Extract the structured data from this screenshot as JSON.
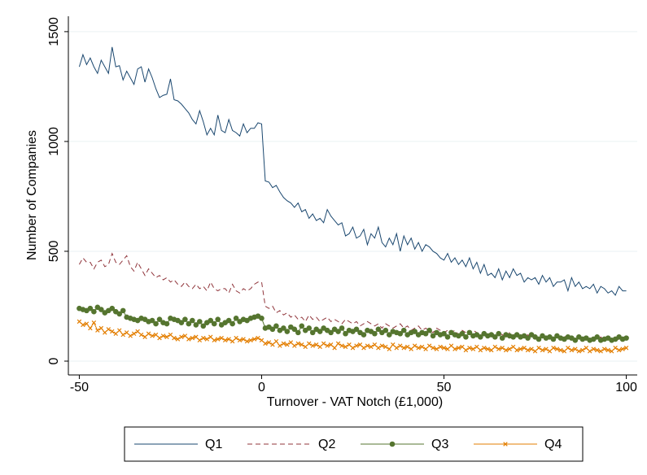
{
  "chart_data": {
    "type": "line",
    "xlabel": "Turnover - VAT Notch (£1,000)",
    "ylabel": "Number of Companies",
    "xlim": [
      -53,
      103
    ],
    "xticks": [
      -50,
      0,
      50,
      100
    ],
    "ylim": [
      -63,
      1570
    ],
    "yticks": [
      0,
      500,
      1000,
      1500
    ],
    "grid": true,
    "legend": "bottom",
    "x": [
      -50,
      -49,
      -48,
      -47,
      -46,
      -45,
      -44,
      -43,
      -42,
      -41,
      -40,
      -39,
      -38,
      -37,
      -36,
      -35,
      -34,
      -33,
      -32,
      -31,
      -30,
      -29,
      -28,
      -27,
      -26,
      -25,
      -24,
      -23,
      -22,
      -21,
      -20,
      -19,
      -18,
      -17,
      -16,
      -15,
      -14,
      -13,
      -12,
      -11,
      -10,
      -9,
      -8,
      -7,
      -6,
      -5,
      -4,
      -3,
      -2,
      -1,
      0,
      1,
      2,
      3,
      4,
      5,
      6,
      7,
      8,
      9,
      10,
      11,
      12,
      13,
      14,
      15,
      16,
      17,
      18,
      19,
      20,
      21,
      22,
      23,
      24,
      25,
      26,
      27,
      28,
      29,
      30,
      31,
      32,
      33,
      34,
      35,
      36,
      37,
      38,
      39,
      40,
      41,
      42,
      43,
      44,
      45,
      46,
      47,
      48,
      49,
      50,
      51,
      52,
      53,
      54,
      55,
      56,
      57,
      58,
      59,
      60,
      61,
      62,
      63,
      64,
      65,
      66,
      67,
      68,
      69,
      70,
      71,
      72,
      73,
      74,
      75,
      76,
      77,
      78,
      79,
      80,
      81,
      82,
      83,
      84,
      85,
      86,
      87,
      88,
      89,
      90,
      91,
      92,
      93,
      94,
      95,
      96,
      97,
      98,
      99,
      100
    ],
    "series": [
      {
        "name": "Q1",
        "color": "#1a476f",
        "style": "solid",
        "marker": "none",
        "values": [
          1340,
          1395,
          1350,
          1380,
          1340,
          1310,
          1370,
          1340,
          1310,
          1430,
          1340,
          1345,
          1280,
          1320,
          1290,
          1260,
          1330,
          1340,
          1270,
          1330,
          1290,
          1240,
          1200,
          1210,
          1215,
          1285,
          1190,
          1185,
          1170,
          1150,
          1130,
          1100,
          1080,
          1140,
          1090,
          1030,
          1060,
          1030,
          1120,
          1050,
          1040,
          1100,
          1050,
          1040,
          1025,
          1080,
          1040,
          1060,
          1060,
          1085,
          1080,
          820,
          815,
          790,
          800,
          770,
          745,
          730,
          720,
          700,
          720,
          680,
          690,
          650,
          670,
          640,
          650,
          630,
          690,
          660,
          640,
          620,
          630,
          570,
          580,
          610,
          560,
          570,
          600,
          530,
          580,
          560,
          610,
          540,
          520,
          560,
          530,
          580,
          500,
          570,
          530,
          560,
          510,
          540,
          500,
          530,
          520,
          500,
          490,
          470,
          460,
          490,
          450,
          470,
          440,
          460,
          430,
          470,
          420,
          450,
          400,
          440,
          390,
          400,
          380,
          420,
          370,
          410,
          380,
          420,
          390,
          400,
          360,
          380,
          370,
          380,
          350,
          390,
          360,
          380,
          340,
          360,
          360,
          370,
          320,
          380,
          340,
          360,
          330,
          340,
          330,
          350,
          310,
          340,
          330,
          310,
          320,
          300,
          340,
          320,
          320
        ]
      },
      {
        "name": "Q2",
        "color": "#90353b",
        "style": "dashed",
        "marker": "none",
        "values": [
          440,
          470,
          450,
          450,
          420,
          450,
          460,
          430,
          440,
          490,
          450,
          440,
          460,
          480,
          430,
          410,
          450,
          420,
          390,
          420,
          400,
          380,
          390,
          370,
          380,
          360,
          370,
          350,
          340,
          360,
          340,
          330,
          350,
          330,
          340,
          320,
          360,
          330,
          320,
          330,
          330,
          310,
          350,
          320,
          310,
          330,
          320,
          330,
          350,
          360,
          360,
          250,
          240,
          250,
          220,
          230,
          210,
          220,
          200,
          210,
          190,
          200,
          180,
          210,
          190,
          200,
          180,
          190,
          200,
          180,
          190,
          180,
          170,
          190,
          180,
          170,
          180,
          160,
          170,
          180,
          170,
          160,
          170,
          150,
          170,
          160,
          150,
          160,
          170,
          150,
          160,
          140,
          150,
          160,
          140,
          150,
          140,
          130,
          150,
          140,
          130,
          140,
          130,
          140,
          120,
          140,
          130,
          120,
          140,
          130,
          120,
          130,
          120,
          130,
          110,
          130,
          120,
          110,
          130,
          120,
          110,
          120,
          110,
          120,
          110,
          120,
          100,
          115,
          110,
          120,
          100,
          110,
          100,
          115,
          105,
          110,
          95,
          110,
          100,
          105,
          95,
          105,
          100,
          110,
          95,
          100,
          105,
          95,
          100,
          105,
          100
        ]
      },
      {
        "name": "Q3",
        "color": "#55752f",
        "style": "solid",
        "marker": "circle",
        "values": [
          240,
          235,
          230,
          240,
          225,
          245,
          235,
          220,
          230,
          240,
          225,
          215,
          230,
          200,
          195,
          190,
          185,
          195,
          190,
          180,
          185,
          170,
          190,
          175,
          170,
          195,
          190,
          185,
          175,
          190,
          170,
          185,
          165,
          180,
          160,
          175,
          185,
          170,
          190,
          165,
          175,
          185,
          170,
          195,
          180,
          190,
          185,
          195,
          200,
          205,
          195,
          150,
          155,
          145,
          160,
          140,
          150,
          135,
          155,
          145,
          130,
          160,
          140,
          150,
          130,
          145,
          135,
          150,
          140,
          130,
          145,
          135,
          150,
          125,
          140,
          135,
          145,
          130,
          120,
          140,
          135,
          125,
          145,
          130,
          140,
          120,
          135,
          130,
          125,
          140,
          120,
          130,
          135,
          120,
          130,
          125,
          140,
          115,
          130,
          120,
          125,
          110,
          130,
          120,
          115,
          125,
          110,
          130,
          115,
          120,
          110,
          125,
          115,
          120,
          110,
          125,
          105,
          120,
          115,
          110,
          120,
          110,
          115,
          105,
          120,
          110,
          100,
          115,
          105,
          110,
          100,
          115,
          105,
          100,
          110,
          105,
          95,
          110,
          100,
          105,
          95,
          100,
          110,
          95,
          100,
          105,
          95,
          100,
          110,
          100,
          105
        ]
      },
      {
        "name": "Q4",
        "color": "#e37e00",
        "style": "solid",
        "marker": "x",
        "values": [
          180,
          165,
          170,
          150,
          175,
          140,
          150,
          130,
          145,
          135,
          125,
          140,
          120,
          130,
          115,
          125,
          135,
          120,
          110,
          125,
          115,
          120,
          105,
          115,
          110,
          120,
          105,
          100,
          110,
          115,
          100,
          105,
          110,
          95,
          105,
          100,
          110,
          95,
          100,
          105,
          95,
          100,
          90,
          105,
          95,
          100,
          90,
          95,
          100,
          105,
          95,
          80,
          85,
          75,
          90,
          70,
          80,
          75,
          85,
          70,
          80,
          75,
          65,
          80,
          70,
          75,
          65,
          80,
          70,
          75,
          60,
          80,
          70,
          65,
          75,
          60,
          70,
          75,
          60,
          70,
          65,
          75,
          60,
          70,
          65,
          55,
          75,
          60,
          70,
          60,
          65,
          55,
          70,
          60,
          65,
          55,
          70,
          60,
          55,
          65,
          60,
          55,
          70,
          55,
          60,
          65,
          50,
          60,
          55,
          65,
          50,
          60,
          55,
          50,
          65,
          55,
          60,
          50,
          55,
          65,
          50,
          55,
          60,
          50,
          55,
          45,
          60,
          50,
          55,
          45,
          60,
          55,
          50,
          45,
          60,
          50,
          55,
          45,
          50,
          60,
          45,
          55,
          50,
          45,
          55,
          50,
          45,
          60,
          50,
          55,
          60
        ]
      }
    ]
  }
}
